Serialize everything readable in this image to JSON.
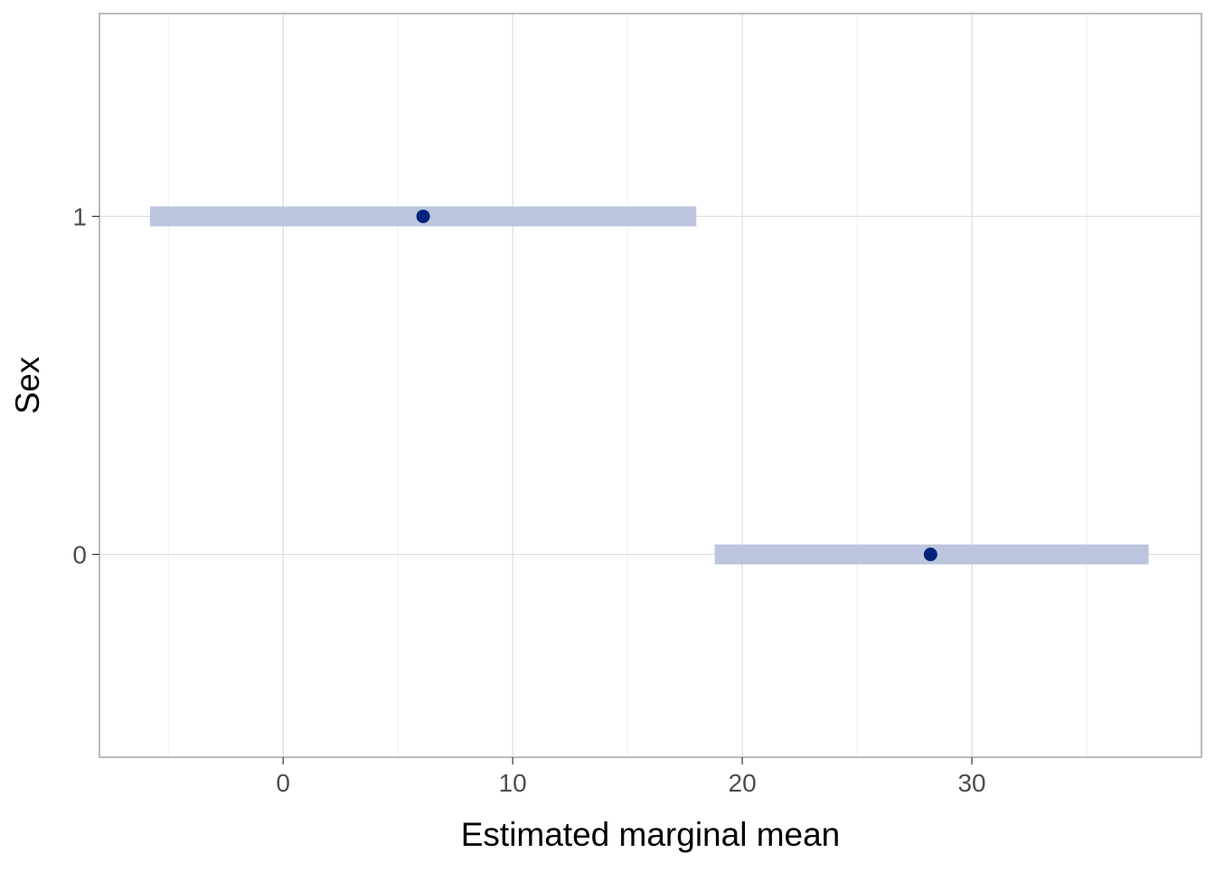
{
  "chart_data": {
    "type": "scatter",
    "subtype": "point-interval",
    "title": "",
    "xlabel": "Estimated marginal mean",
    "ylabel": "Sex",
    "xlim": [
      -8,
      40
    ],
    "ylim": [
      -0.6,
      1.6
    ],
    "x_ticks": [
      0,
      10,
      20,
      30
    ],
    "x_tick_labels": [
      "0",
      "10",
      "20",
      "30"
    ],
    "x_minor_ticks": [
      -5,
      5,
      15,
      25,
      35
    ],
    "y_ticks": [
      0,
      1
    ],
    "y_tick_labels": [
      "0",
      "1"
    ],
    "grid": true,
    "legend": "none",
    "points": [
      {
        "y": 1,
        "y_label": "1",
        "estimate": 6.1,
        "lower": -5.8,
        "upper": 18.0
      },
      {
        "y": 0,
        "y_label": "0",
        "estimate": 28.2,
        "lower": 18.8,
        "upper": 37.7
      }
    ],
    "colors": {
      "point": "#00237d",
      "interval": "#bcc5dd",
      "grid_major": "#dcdcdc",
      "grid_minor": "#eeeeee",
      "panel_border": "#a6a6a6",
      "tick_text": "#4d4d4d"
    }
  }
}
